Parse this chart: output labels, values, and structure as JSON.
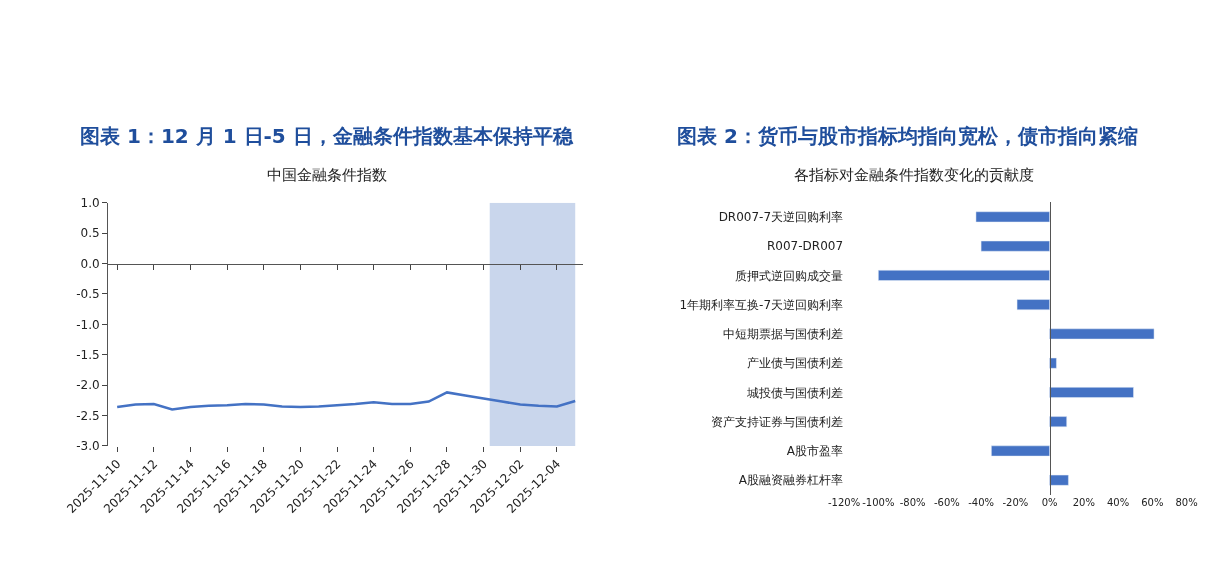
{
  "chart_data": [
    {
      "type": "line",
      "title": "图表 1：12 月 1 日-5 日，金融条件指数基本保持平稳",
      "subtitle": "中国金融条件指数",
      "x": [
        "2025-11-10",
        "2025-11-11",
        "2025-11-12",
        "2025-11-13",
        "2025-11-14",
        "2025-11-15",
        "2025-11-16",
        "2025-11-17",
        "2025-11-18",
        "2025-11-19",
        "2025-11-20",
        "2025-11-21",
        "2025-11-22",
        "2025-11-23",
        "2025-11-24",
        "2025-11-25",
        "2025-11-26",
        "2025-11-27",
        "2025-11-28",
        "2025-11-29",
        "2025-11-30",
        "2025-12-01",
        "2025-12-02",
        "2025-12-03",
        "2025-12-04",
        "2025-12-05"
      ],
      "series": [
        {
          "color": "#4472c4",
          "values": [
            -2.36,
            -2.32,
            -2.31,
            -2.4,
            -2.36,
            -2.34,
            -2.33,
            -2.31,
            -2.32,
            -2.35,
            -2.36,
            -2.35,
            -2.33,
            -2.31,
            -2.28,
            -2.31,
            -2.31,
            -2.27,
            -2.12,
            -2.17,
            -2.22,
            -2.27,
            -2.32,
            -2.34,
            -2.35,
            -2.26
          ]
        }
      ],
      "xlim": [
        "2025-11-09T12:00",
        "2025-12-05T10:00"
      ],
      "xticks": [
        "2025-11-10",
        "2025-11-12",
        "2025-11-14",
        "2025-11-16",
        "2025-11-18",
        "2025-11-20",
        "2025-11-22",
        "2025-11-24",
        "2025-11-26",
        "2025-11-28",
        "2025-11-30",
        "2025-12-02",
        "2025-12-04"
      ],
      "ylim": [
        -3,
        1
      ],
      "yticks": [
        {
          "value": 1,
          "label": "1.0"
        },
        {
          "value": 0.5,
          "label": "0.5"
        },
        {
          "value": 0,
          "label": "0.0"
        },
        {
          "value": -0.5,
          "label": "-0.5"
        },
        {
          "value": -1,
          "label": "-1.0"
        },
        {
          "value": -1.5,
          "label": "-1.5"
        },
        {
          "value": -2,
          "label": "-2.0"
        },
        {
          "value": -2.5,
          "label": "-2.5"
        },
        {
          "value": -3,
          "label": "-3.0"
        }
      ],
      "bands": [
        {
          "axis": "x",
          "from": "2025-11-30T08:00",
          "to": "2025-12-05",
          "color": "#c9d6ec"
        }
      ],
      "marker": "none",
      "line_style": "solid"
    },
    {
      "type": "bar",
      "orientation": "horizontal",
      "title": "图表 2：货币与股市指标均指向宽松，债市指向紧缩",
      "subtitle": "各指标对金融条件指数变化的贡献度",
      "categories": [
        "DR007-7天逆回购利率",
        "R007-DR007",
        "质押式逆回购成交量",
        "1年期利率互换-7天逆回购利率",
        "中短期票据与国债利差",
        "产业债与国债利差",
        "城投债与国债利差",
        "资产支持证券与国债利差",
        "A股市盈率",
        "A股融资融券杠杆率"
      ],
      "values": [
        -43,
        -40,
        -100,
        -19,
        61,
        4,
        49,
        10,
        -34,
        11
      ],
      "color": "#4472c4",
      "xlim": [
        -120,
        80
      ],
      "xticks": [
        {
          "value": -120,
          "label": "-120%"
        },
        {
          "value": -100,
          "label": "-100%"
        },
        {
          "value": -80,
          "label": "-80%"
        },
        {
          "value": -60,
          "label": "-60%"
        },
        {
          "value": -40,
          "label": "-40%"
        },
        {
          "value": -20,
          "label": "-20%"
        },
        {
          "value": 0,
          "label": "0%"
        },
        {
          "value": 20,
          "label": "20%"
        },
        {
          "value": 40,
          "label": "40%"
        },
        {
          "value": 60,
          "label": "60%"
        },
        {
          "value": 80,
          "label": "80%"
        }
      ]
    }
  ]
}
